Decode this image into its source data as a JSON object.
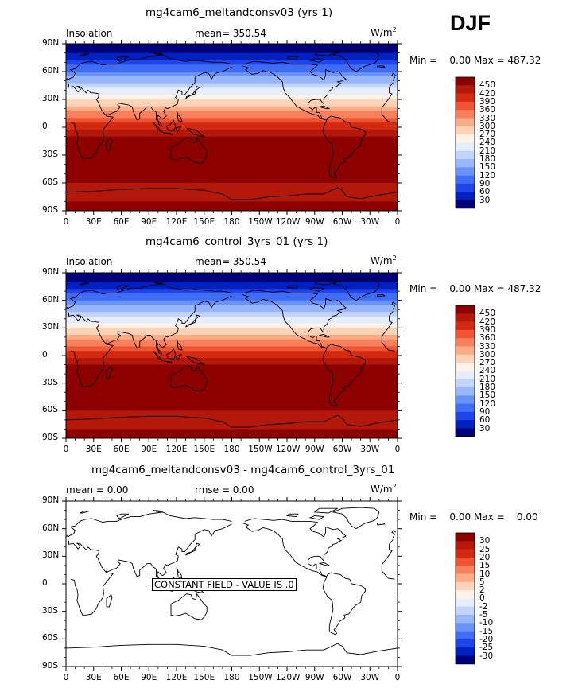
{
  "season": "DJF",
  "panels": [
    {
      "title": "mg4cam6_meltandconsv03 (yrs 1)",
      "left_label": "Insolation",
      "center_label": "mean= 350.54",
      "units": "W/m",
      "units_sup": "2",
      "stats": "Min =    0.00 Max = 487.32",
      "field": "insolation",
      "colorbar_labels": [
        "450",
        "420",
        "390",
        "360",
        "330",
        "300",
        "270",
        "240",
        "210",
        "180",
        "150",
        "120",
        "90",
        "60",
        "30"
      ]
    },
    {
      "title": "mg4cam6_control_3yrs_01 (yrs 1)",
      "left_label": "Insolation",
      "center_label": "mean= 350.54",
      "units": "W/m",
      "units_sup": "2",
      "stats": "Min =    0.00 Max = 487.32",
      "field": "insolation",
      "colorbar_labels": [
        "450",
        "420",
        "390",
        "360",
        "330",
        "300",
        "270",
        "240",
        "210",
        "180",
        "150",
        "120",
        "90",
        "60",
        "30"
      ]
    },
    {
      "title": "mg4cam6_meltandconsv03 - mg4cam6_control_3yrs_01",
      "left_label": "mean =     0.00",
      "center_label": "rmse =     0.00",
      "units": "W/m",
      "units_sup": "2",
      "stats": "Min =    0.00 Max =    0.00",
      "field": "difference",
      "constant_text": "CONSTANT FIELD - VALUE IS .0",
      "colorbar_labels": [
        "30",
        "25",
        "20",
        "15",
        "10",
        "5",
        "2",
        "0",
        "-2",
        "-5",
        "-10",
        "-15",
        "-20",
        "-25",
        "-30"
      ]
    }
  ],
  "lat_ticks": [
    "90N",
    "60N",
    "30N",
    "0",
    "30S",
    "60S",
    "90S"
  ],
  "lon_ticks": [
    "0",
    "30E",
    "60E",
    "90E",
    "120E",
    "150E",
    "180",
    "150W",
    "120W",
    "90W",
    "60W",
    "30W",
    "0"
  ],
  "colors": {
    "palette": [
      "#00007a",
      "#0020c0",
      "#1f45ea",
      "#3f6df5",
      "#6993fa",
      "#97b6fb",
      "#c2d4fc",
      "#e6eefe",
      "#fff2e6",
      "#fed3b8",
      "#fdad85",
      "#f9805c",
      "#f05432",
      "#d42a12",
      "#b4180a",
      "#8d0000"
    ]
  }
}
